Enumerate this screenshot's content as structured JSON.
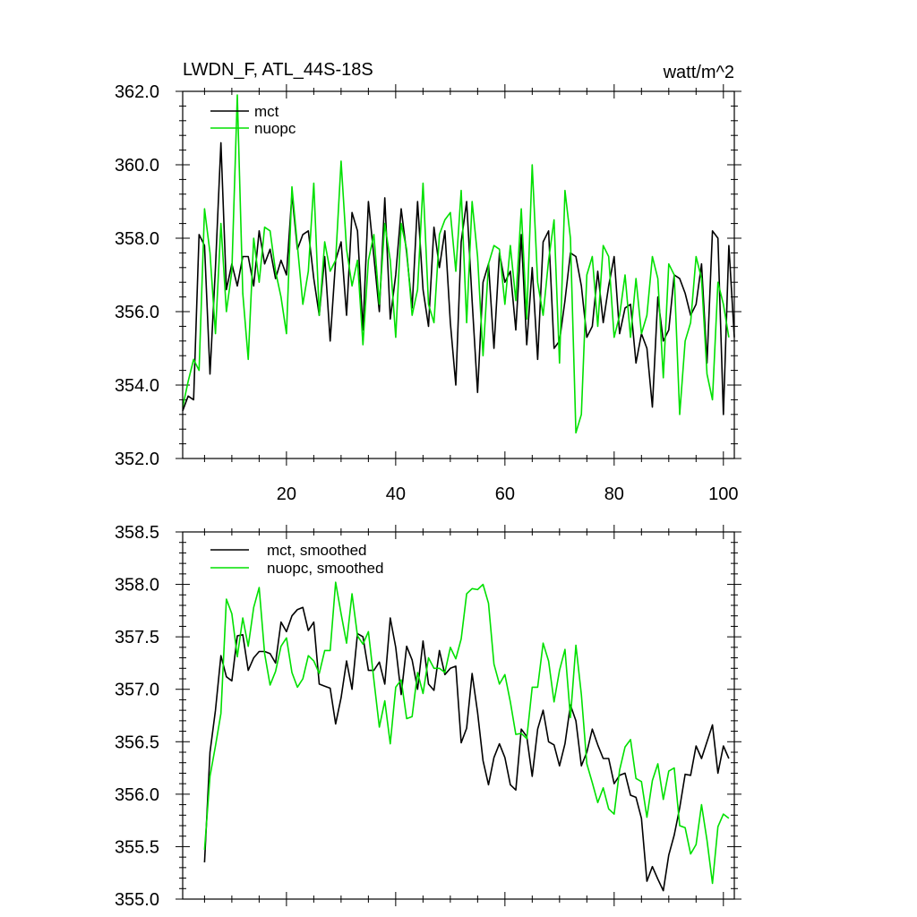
{
  "chart_data": [
    {
      "type": "line",
      "title": "LWDN_F, ATL_44S-18S",
      "units": "watt/m^2",
      "ylim": [
        352.0,
        362.0
      ],
      "yticks": [
        352.0,
        354.0,
        356.0,
        358.0,
        360.0,
        362.0
      ],
      "ytick_labels": [
        "352.0",
        "354.0",
        "356.0",
        "358.0",
        "360.0",
        "362.0"
      ],
      "xlim": [
        1,
        102
      ],
      "xticks": [
        20,
        40,
        60,
        80,
        100
      ],
      "xtick_labels": [
        "20",
        "40",
        "60",
        "80",
        "100"
      ],
      "legend_position": "top-left",
      "grid": false,
      "series": [
        {
          "name": "mct",
          "color": "#000000",
          "x_start": 1,
          "values": [
            353.3,
            353.7,
            353.6,
            358.1,
            357.8,
            354.3,
            357.2,
            360.6,
            356.6,
            357.3,
            356.7,
            357.5,
            357.5,
            356.7,
            358.2,
            357.3,
            357.7,
            356.9,
            357.4,
            357.0,
            359.2,
            357.7,
            358.1,
            358.2,
            356.9,
            355.9,
            357.5,
            355.2,
            357.4,
            357.9,
            355.9,
            358.7,
            358.2,
            355.5,
            359.0,
            357.5,
            356.0,
            359.1,
            355.8,
            357.0,
            358.8,
            357.6,
            356.1,
            359.0,
            356.6,
            355.6,
            358.3,
            357.2,
            358.2,
            355.7,
            354.0,
            357.9,
            359.0,
            356.3,
            353.8,
            356.8,
            357.3,
            355.0,
            357.6,
            356.8,
            357.1,
            355.5,
            358.1,
            355.1,
            357.2,
            354.7,
            357.9,
            358.2,
            355.0,
            355.2,
            356.3,
            357.6,
            357.5,
            356.7,
            355.3,
            355.6,
            357.1,
            355.7,
            356.7,
            357.5,
            355.4,
            356.1,
            356.2,
            354.6,
            355.4,
            355.0,
            353.4,
            356.4,
            355.2,
            355.5,
            357.0,
            356.9,
            356.5,
            355.9,
            356.2,
            357.3,
            354.6,
            358.2,
            358.0,
            353.2,
            357.8,
            355.3
          ]
        },
        {
          "name": "nuopc",
          "color": "#00e000",
          "x_start": 1,
          "values": [
            353.4,
            354.1,
            354.7,
            354.4,
            358.8,
            357.6,
            355.4,
            358.4,
            356.0,
            357.1,
            361.9,
            356.5,
            354.7,
            358.0,
            356.8,
            358.3,
            358.2,
            357.1,
            356.4,
            355.4,
            359.4,
            357.8,
            356.2,
            357.1,
            359.5,
            355.9,
            357.9,
            357.1,
            357.4,
            360.1,
            357.7,
            356.7,
            357.4,
            355.1,
            357.4,
            358.1,
            356.2,
            358.4,
            357.4,
            355.3,
            358.4,
            357.7,
            355.9,
            356.6,
            359.5,
            356.2,
            355.7,
            358.1,
            358.5,
            358.7,
            357.1,
            359.3,
            355.7,
            359.0,
            357.5,
            354.8,
            357.3,
            357.8,
            357.7,
            356.2,
            357.8,
            356.3,
            358.8,
            355.8,
            360.0,
            356.8,
            355.9,
            357.4,
            358.5,
            354.6,
            359.3,
            358.0,
            352.7,
            353.2,
            357.0,
            357.5,
            355.6,
            357.8,
            357.5,
            355.3,
            355.9,
            357.0,
            355.3,
            356.9,
            355.4,
            355.9,
            357.5,
            356.9,
            354.2,
            357.3,
            357.0,
            353.2,
            355.2,
            355.7,
            357.5,
            356.9,
            354.3,
            353.6,
            356.8,
            356.2,
            355.3
          ]
        }
      ]
    },
    {
      "type": "line",
      "ylim": [
        355.0,
        358.5
      ],
      "yticks": [
        355.0,
        355.5,
        356.0,
        356.5,
        357.0,
        357.5,
        358.0,
        358.5
      ],
      "ytick_labels": [
        "355.0",
        "355.5",
        "356.0",
        "356.5",
        "357.0",
        "357.5",
        "358.0",
        "358.5"
      ],
      "xlim": [
        1,
        102
      ],
      "xticks": [
        20,
        40,
        60,
        80,
        100
      ],
      "legend_position": "top-left",
      "grid": false,
      "series": [
        {
          "name": "mct, smoothed",
          "color": "#000000",
          "x_start": 5,
          "values": [
            355.35,
            356.4,
            356.8,
            357.32,
            357.12,
            357.08,
            357.51,
            357.52,
            357.18,
            357.3,
            357.36,
            357.36,
            357.34,
            357.25,
            357.64,
            357.55,
            357.7,
            357.76,
            357.78,
            357.56,
            357.64,
            357.05,
            357.03,
            357.01,
            356.67,
            356.92,
            357.27,
            357.0,
            357.53,
            357.5,
            357.18,
            357.18,
            357.26,
            357.05,
            357.68,
            357.4,
            356.95,
            357.41,
            357.28,
            357.0,
            357.46,
            357.05,
            356.99,
            357.37,
            357.14,
            357.2,
            357.22,
            356.49,
            356.63,
            357.15,
            356.78,
            356.32,
            356.09,
            356.35,
            356.48,
            356.35,
            356.09,
            356.04,
            356.62,
            356.55,
            356.17,
            356.62,
            356.8,
            356.5,
            356.47,
            356.27,
            356.48,
            356.85,
            356.7,
            356.27,
            356.4,
            356.62,
            356.47,
            356.34,
            356.34,
            356.1,
            356.18,
            356.2,
            355.99,
            355.97,
            355.77,
            355.17,
            355.31,
            355.19,
            355.08,
            355.42,
            355.61,
            355.87,
            356.19,
            356.18,
            356.46,
            356.34,
            356.5,
            356.66,
            356.2,
            356.46,
            356.34
          ]
        },
        {
          "name": "nuopc, smoothed",
          "color": "#00e000",
          "x_start": 5,
          "values": [
            355.47,
            356.17,
            356.46,
            356.77,
            357.86,
            357.72,
            357.31,
            357.68,
            357.41,
            357.78,
            357.97,
            357.34,
            357.04,
            357.17,
            357.41,
            357.49,
            357.16,
            357.02,
            357.1,
            357.32,
            357.27,
            357.15,
            357.37,
            357.37,
            358.02,
            357.72,
            357.44,
            357.91,
            357.51,
            357.43,
            357.55,
            357.09,
            356.64,
            356.89,
            356.48,
            357.02,
            357.09,
            356.72,
            356.74,
            357.16,
            356.96,
            357.3,
            357.2,
            357.2,
            357.16,
            357.4,
            357.29,
            357.48,
            357.91,
            357.96,
            357.95,
            358.0,
            357.82,
            357.24,
            357.05,
            357.14,
            356.88,
            356.57,
            356.58,
            356.53,
            357.02,
            357.02,
            357.44,
            357.27,
            356.88,
            357.18,
            357.38,
            356.73,
            357.42,
            356.95,
            356.29,
            356.11,
            355.92,
            356.06,
            355.86,
            355.81,
            356.23,
            356.45,
            356.52,
            356.15,
            356.12,
            355.78,
            356.13,
            356.29,
            355.95,
            356.22,
            356.25,
            355.7,
            355.68,
            355.43,
            355.52,
            355.9,
            355.56,
            355.15,
            355.69,
            355.81,
            355.77
          ]
        }
      ]
    }
  ]
}
